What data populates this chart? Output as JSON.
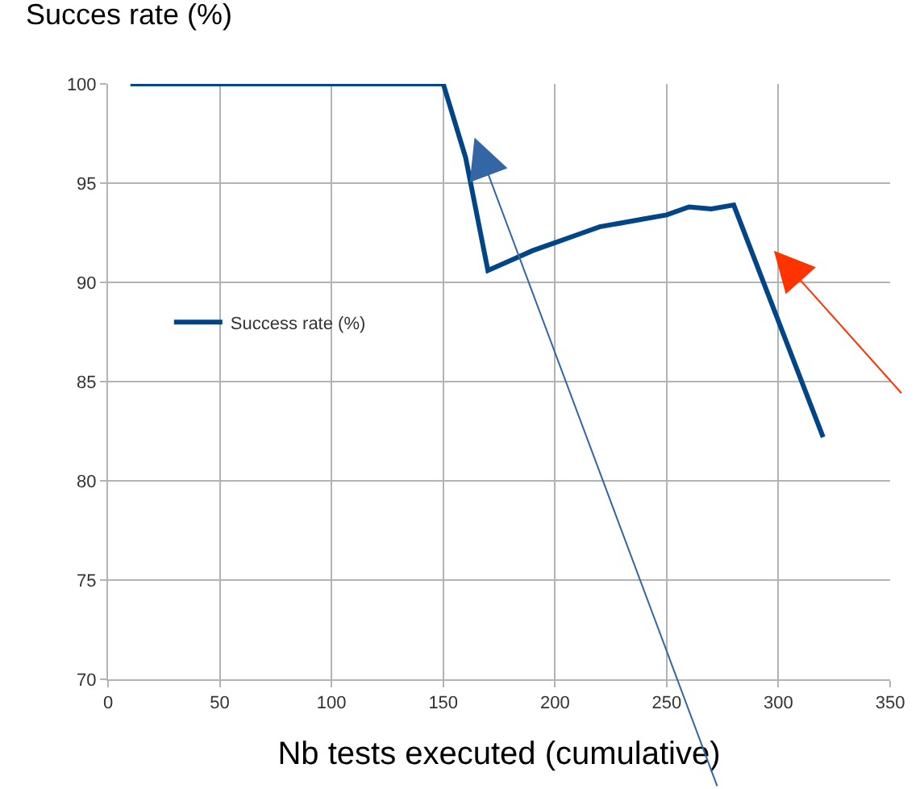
{
  "chart_data": {
    "type": "line",
    "ylabel": "Succes rate (%)",
    "xlabel": "Nb tests executed (cumulative)",
    "x": [
      10,
      150,
      160,
      170,
      180,
      190,
      200,
      210,
      220,
      230,
      240,
      250,
      260,
      270,
      280,
      320
    ],
    "series": [
      {
        "name": "Success rate (%)",
        "color": "#004586",
        "values": [
          100,
          100,
          96.3,
          90.6,
          91.1,
          91.6,
          92.0,
          92.4,
          92.8,
          93.0,
          93.2,
          93.4,
          93.8,
          93.7,
          93.9,
          82.2
        ]
      }
    ],
    "xlim": [
      0,
      350
    ],
    "xticks": [
      0,
      50,
      100,
      150,
      200,
      250,
      300,
      350
    ],
    "ylim": [
      70,
      100
    ],
    "yticks": [
      70,
      75,
      80,
      85,
      90,
      95,
      100
    ],
    "grid": true,
    "legend": "left",
    "marker": "none",
    "line_style": "solid"
  }
}
